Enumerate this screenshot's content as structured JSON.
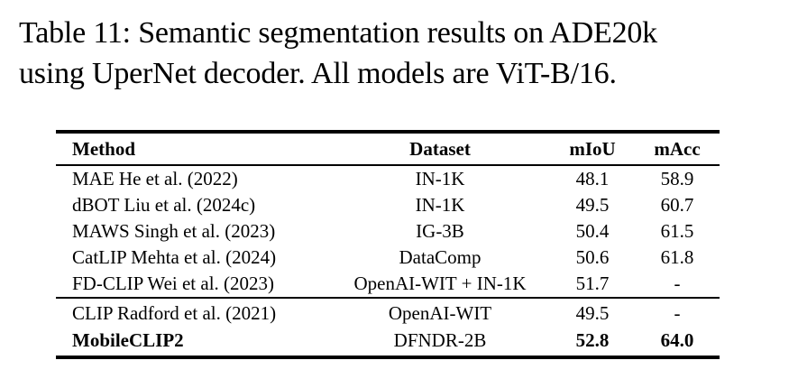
{
  "caption": {
    "line1": "Table 11: Semantic segmentation results on ADE20k",
    "line2": "using UperNet decoder. All models are ViT-B/16."
  },
  "table": {
    "headers": [
      "Method",
      "Dataset",
      "mIoU",
      "mAcc"
    ],
    "group1": [
      [
        "MAE He et al. (2022)",
        "IN-1K",
        "48.1",
        "58.9"
      ],
      [
        "dBOT Liu et al. (2024c)",
        "IN-1K",
        "49.5",
        "60.7"
      ],
      [
        "MAWS Singh et al. (2023)",
        "IG-3B",
        "50.4",
        "61.5"
      ],
      [
        "CatLIP Mehta et al. (2024)",
        "DataComp",
        "50.6",
        "61.8"
      ],
      [
        "FD-CLIP Wei et al. (2023)",
        "OpenAI-WIT + IN-1K",
        "51.7",
        "-"
      ]
    ],
    "group2": [
      [
        "CLIP Radford et al. (2021)",
        "OpenAI-WIT",
        "49.5",
        "-"
      ],
      [
        "MobileCLIP2",
        "DFNDR-2B",
        "52.8",
        "64.0"
      ]
    ]
  },
  "colors": {
    "text": "#000000",
    "background": "#ffffff",
    "rule": "#000000"
  }
}
